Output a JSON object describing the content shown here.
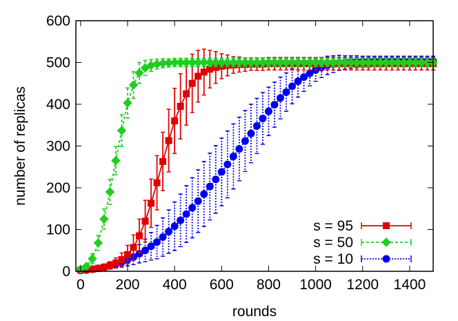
{
  "chart_data": {
    "type": "line",
    "title": "",
    "xlabel": "rounds",
    "ylabel": "number of replicas",
    "xlim": [
      -20,
      1500
    ],
    "ylim": [
      0,
      600
    ],
    "xticks": [
      0,
      200,
      400,
      600,
      800,
      1000,
      1200,
      1400
    ],
    "yticks": [
      0,
      100,
      200,
      300,
      400,
      500,
      600
    ],
    "grid": false,
    "legend_position": "bottom-right",
    "series": [
      {
        "name": "s = 95",
        "color": "#e00000",
        "marker": "square",
        "line_style": "solid",
        "x": [
          0,
          25,
          50,
          75,
          100,
          125,
          150,
          175,
          200,
          225,
          250,
          275,
          300,
          325,
          350,
          375,
          400,
          425,
          450,
          475,
          500,
          525,
          550,
          575,
          600,
          625,
          650,
          675,
          700,
          725,
          750,
          775,
          800,
          825,
          850,
          875,
          900,
          925,
          950,
          975,
          1000,
          1025,
          1050,
          1075,
          1100,
          1125,
          1150,
          1175,
          1200,
          1225,
          1250,
          1275,
          1300,
          1325,
          1350,
          1375,
          1400,
          1425,
          1450,
          1475,
          1500
        ],
        "y": [
          3,
          4,
          5,
          7,
          10,
          14,
          20,
          28,
          40,
          57,
          85,
          120,
          163,
          212,
          263,
          313,
          360,
          395,
          425,
          450,
          467,
          477,
          484,
          488,
          491,
          493,
          494,
          495,
          495,
          496,
          496,
          496,
          497,
          497,
          497,
          497,
          497,
          497,
          497,
          497,
          497,
          497,
          497,
          497,
          497,
          497,
          497,
          497,
          497,
          497,
          497,
          497,
          497,
          497,
          497,
          497,
          497,
          497,
          497,
          497,
          497
        ],
        "err": [
          2,
          3,
          4,
          5,
          7,
          9,
          12,
          16,
          22,
          30,
          40,
          50,
          58,
          65,
          70,
          75,
          78,
          78,
          75,
          70,
          62,
          55,
          45,
          38,
          30,
          25,
          20,
          18,
          16,
          15,
          15,
          15,
          15,
          15,
          15,
          15,
          15,
          15,
          15,
          15,
          15,
          15,
          15,
          15,
          15,
          15,
          15,
          15,
          15,
          15,
          15,
          15,
          15,
          15,
          15,
          15,
          15,
          15,
          15,
          15,
          15
        ]
      },
      {
        "name": "s = 50",
        "color": "#22cc22",
        "marker": "diamond",
        "line_style": "dashed",
        "x": [
          0,
          25,
          50,
          75,
          100,
          125,
          150,
          175,
          200,
          225,
          250,
          275,
          300,
          325,
          350,
          375,
          400,
          425,
          450,
          475,
          500,
          525,
          550,
          575,
          600,
          625,
          650,
          675,
          700,
          725,
          750,
          775,
          800,
          825,
          850,
          875,
          900,
          925,
          950,
          975,
          1000,
          1025,
          1050,
          1075,
          1100,
          1125,
          1150,
          1175,
          1200,
          1225,
          1250,
          1275,
          1300,
          1325,
          1350,
          1375,
          1400,
          1425,
          1450,
          1475,
          1500
        ],
        "y": [
          5,
          12,
          30,
          68,
          125,
          190,
          265,
          337,
          403,
          446,
          475,
          487,
          493,
          496,
          498,
          499,
          500,
          500,
          500,
          500,
          500,
          500,
          500,
          500,
          500,
          500,
          500,
          500,
          500,
          500,
          500,
          500,
          500,
          500,
          500,
          500,
          500,
          500,
          500,
          500,
          500,
          500,
          500,
          500,
          500,
          500,
          500,
          500,
          500,
          500,
          500,
          500,
          500,
          500,
          500,
          500,
          500,
          500,
          500,
          500,
          500
        ],
        "err": [
          3,
          6,
          12,
          18,
          24,
          30,
          34,
          38,
          36,
          32,
          25,
          18,
          14,
          12,
          11,
          10,
          10,
          10,
          10,
          10,
          10,
          10,
          10,
          10,
          10,
          10,
          10,
          10,
          10,
          10,
          10,
          10,
          10,
          10,
          10,
          10,
          10,
          10,
          10,
          10,
          10,
          10,
          10,
          10,
          10,
          10,
          10,
          10,
          10,
          10,
          10,
          10,
          10,
          10,
          10,
          10,
          10,
          10,
          10,
          10,
          10
        ]
      },
      {
        "name": "s = 10",
        "color": "#0000ee",
        "marker": "circle",
        "line_style": "dotted",
        "x": [
          0,
          25,
          50,
          75,
          100,
          125,
          150,
          175,
          200,
          225,
          250,
          275,
          300,
          325,
          350,
          375,
          400,
          425,
          450,
          475,
          500,
          525,
          550,
          575,
          600,
          625,
          650,
          675,
          700,
          725,
          750,
          775,
          800,
          825,
          850,
          875,
          900,
          925,
          950,
          975,
          1000,
          1025,
          1050,
          1075,
          1100,
          1125,
          1150,
          1175,
          1200,
          1225,
          1250,
          1275,
          1300,
          1325,
          1350,
          1375,
          1400,
          1425,
          1450,
          1475,
          1500
        ],
        "y": [
          2,
          3,
          5,
          7,
          10,
          13,
          17,
          22,
          28,
          34,
          42,
          50,
          60,
          70,
          82,
          95,
          108,
          122,
          137,
          152,
          168,
          185,
          203,
          220,
          238,
          256,
          275,
          293,
          312,
          330,
          348,
          366,
          383,
          399,
          415,
          429,
          443,
          455,
          465,
          474,
          482,
          488,
          493,
          496,
          499,
          500,
          501,
          502,
          502,
          502,
          503,
          503,
          503,
          503,
          503,
          503,
          503,
          503,
          503,
          503,
          503
        ],
        "err": [
          2,
          2,
          3,
          4,
          5,
          7,
          9,
          12,
          15,
          18,
          22,
          27,
          33,
          40,
          46,
          52,
          58,
          63,
          68,
          72,
          75,
          78,
          80,
          81,
          81,
          80,
          78,
          76,
          73,
          70,
          66,
          62,
          58,
          54,
          50,
          46,
          42,
          38,
          34,
          30,
          27,
          24,
          22,
          20,
          18,
          16,
          15,
          14,
          13,
          13,
          12,
          12,
          12,
          12,
          12,
          12,
          12,
          12,
          12,
          12,
          12
        ]
      }
    ]
  }
}
